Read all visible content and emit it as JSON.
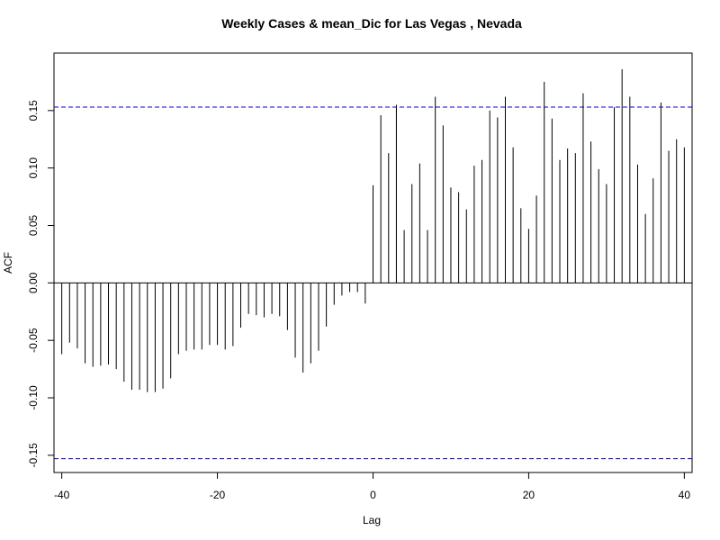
{
  "chart_data": {
    "type": "bar",
    "title": "Weekly Cases & mean_Dic for Las Vegas , Nevada",
    "xlabel": "Lag",
    "ylabel": "ACF",
    "xlim": [
      -41,
      41
    ],
    "ylim": [
      -0.165,
      0.2
    ],
    "x_ticks": [
      -40,
      -20,
      0,
      20,
      40
    ],
    "x_tick_labels": [
      "-40",
      "-20",
      "0",
      "20",
      "40"
    ],
    "y_ticks": [
      -0.15,
      -0.1,
      -0.05,
      0.0,
      0.05,
      0.1,
      0.15
    ],
    "y_tick_labels": [
      "-0.15",
      "-0.10",
      "-0.05",
      "0.00",
      "0.05",
      "0.10",
      "0.15"
    ],
    "confidence_band": 0.153,
    "confidence_color": "#0000cc",
    "bar_color": "#000000",
    "grid": false,
    "lags": [
      -40,
      -39,
      -38,
      -37,
      -36,
      -35,
      -34,
      -33,
      -32,
      -31,
      -30,
      -29,
      -28,
      -27,
      -26,
      -25,
      -24,
      -23,
      -22,
      -21,
      -20,
      -19,
      -18,
      -17,
      -16,
      -15,
      -14,
      -13,
      -12,
      -11,
      -10,
      -9,
      -8,
      -7,
      -6,
      -5,
      -4,
      -3,
      -2,
      -1,
      0,
      1,
      2,
      3,
      4,
      5,
      6,
      7,
      8,
      9,
      10,
      11,
      12,
      13,
      14,
      15,
      16,
      17,
      18,
      19,
      20,
      21,
      22,
      23,
      24,
      25,
      26,
      27,
      28,
      29,
      30,
      31,
      32,
      33,
      34,
      35,
      36,
      37,
      38,
      39,
      40
    ],
    "values": [
      -0.062,
      -0.052,
      -0.057,
      -0.07,
      -0.073,
      -0.072,
      -0.071,
      -0.075,
      -0.086,
      -0.093,
      -0.093,
      -0.095,
      -0.095,
      -0.092,
      -0.083,
      -0.062,
      -0.059,
      -0.058,
      -0.058,
      -0.054,
      -0.054,
      -0.058,
      -0.055,
      -0.039,
      -0.027,
      -0.028,
      -0.03,
      -0.027,
      -0.029,
      -0.041,
      -0.065,
      -0.078,
      -0.07,
      -0.059,
      -0.038,
      -0.019,
      -0.011,
      -0.008,
      -0.008,
      -0.018,
      0.085,
      0.146,
      0.113,
      0.155,
      0.046,
      0.086,
      0.104,
      0.046,
      0.162,
      0.137,
      0.083,
      0.079,
      0.064,
      0.102,
      0.107,
      0.15,
      0.144,
      0.162,
      0.118,
      0.065,
      0.047,
      0.076,
      0.175,
      0.143,
      0.107,
      0.117,
      0.113,
      0.165,
      0.123,
      0.099,
      0.086,
      0.153,
      0.186,
      0.162,
      0.103,
      0.06,
      0.091,
      0.157,
      0.115,
      0.125,
      0.118
    ]
  }
}
